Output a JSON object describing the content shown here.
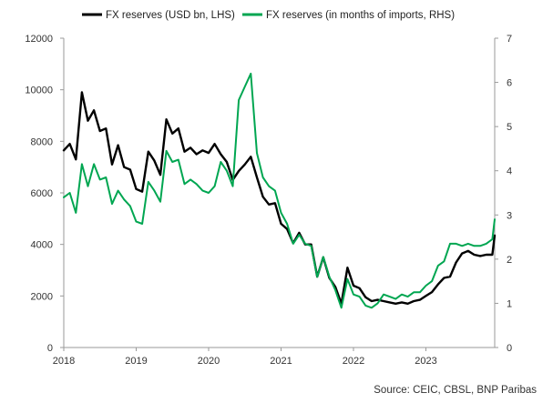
{
  "chart_data": {
    "type": "line",
    "legend": [
      "FX reserves (USD bn, LHS)",
      "FX reserves (in months of imports, RHS)"
    ],
    "left_axis": {
      "ylim": [
        0,
        12000
      ],
      "ticks": [
        "0",
        "2000",
        "4000",
        "6000",
        "8000",
        "10000",
        "12000"
      ]
    },
    "right_axis": {
      "ylim": [
        0,
        7
      ],
      "ticks": [
        "0",
        "1",
        "2",
        "3",
        "4",
        "5",
        "6",
        "7"
      ]
    },
    "x_axis": {
      "xlim": [
        2018.0,
        2023.95
      ],
      "ticks": [
        "2018",
        "2019",
        "2020",
        "2021",
        "2022",
        "2023"
      ]
    },
    "series": [
      {
        "name": "FX reserves (USD bn, LHS)",
        "axis": "left",
        "color": "#000000",
        "points": [
          [
            2018.0,
            7650
          ],
          [
            2018.083,
            7900
          ],
          [
            2018.167,
            7300
          ],
          [
            2018.25,
            9900
          ],
          [
            2018.333,
            8800
          ],
          [
            2018.417,
            9200
          ],
          [
            2018.5,
            8400
          ],
          [
            2018.583,
            8500
          ],
          [
            2018.667,
            7100
          ],
          [
            2018.75,
            7850
          ],
          [
            2018.833,
            7000
          ],
          [
            2018.917,
            6900
          ],
          [
            2019.0,
            6150
          ],
          [
            2019.083,
            6050
          ],
          [
            2019.167,
            7600
          ],
          [
            2019.25,
            7250
          ],
          [
            2019.333,
            6700
          ],
          [
            2019.417,
            8850
          ],
          [
            2019.5,
            8300
          ],
          [
            2019.583,
            8500
          ],
          [
            2019.667,
            7600
          ],
          [
            2019.75,
            7750
          ],
          [
            2019.833,
            7500
          ],
          [
            2019.917,
            7650
          ],
          [
            2020.0,
            7550
          ],
          [
            2020.083,
            7900
          ],
          [
            2020.167,
            7500
          ],
          [
            2020.25,
            7200
          ],
          [
            2020.333,
            6500
          ],
          [
            2020.417,
            6850
          ],
          [
            2020.5,
            7100
          ],
          [
            2020.583,
            7400
          ],
          [
            2020.667,
            6600
          ],
          [
            2020.75,
            5850
          ],
          [
            2020.833,
            5550
          ],
          [
            2020.917,
            5600
          ],
          [
            2021.0,
            4800
          ],
          [
            2021.083,
            4600
          ],
          [
            2021.167,
            4050
          ],
          [
            2021.25,
            4450
          ],
          [
            2021.333,
            4000
          ],
          [
            2021.417,
            4000
          ],
          [
            2021.5,
            2750
          ],
          [
            2021.583,
            3500
          ],
          [
            2021.667,
            2700
          ],
          [
            2021.75,
            2350
          ],
          [
            2021.833,
            1700
          ],
          [
            2021.917,
            3100
          ],
          [
            2022.0,
            2400
          ],
          [
            2022.083,
            2300
          ],
          [
            2022.167,
            1950
          ],
          [
            2022.25,
            1800
          ],
          [
            2022.333,
            1850
          ],
          [
            2022.417,
            1800
          ],
          [
            2022.5,
            1750
          ],
          [
            2022.583,
            1700
          ],
          [
            2022.667,
            1750
          ],
          [
            2022.75,
            1700
          ],
          [
            2022.833,
            1800
          ],
          [
            2022.917,
            1850
          ],
          [
            2023.0,
            2000
          ],
          [
            2023.083,
            2150
          ],
          [
            2023.167,
            2450
          ],
          [
            2023.25,
            2700
          ],
          [
            2023.333,
            2750
          ],
          [
            2023.417,
            3300
          ],
          [
            2023.5,
            3650
          ],
          [
            2023.583,
            3750
          ],
          [
            2023.667,
            3600
          ],
          [
            2023.75,
            3550
          ],
          [
            2023.833,
            3600
          ],
          [
            2023.917,
            3600
          ],
          [
            2023.95,
            4350
          ]
        ]
      },
      {
        "name": "FX reserves (in months of imports, RHS)",
        "axis": "right",
        "color": "#00A651",
        "points": [
          [
            2018.0,
            3.4
          ],
          [
            2018.083,
            3.5
          ],
          [
            2018.167,
            3.05
          ],
          [
            2018.25,
            4.15
          ],
          [
            2018.333,
            3.65
          ],
          [
            2018.417,
            4.15
          ],
          [
            2018.5,
            3.8
          ],
          [
            2018.583,
            3.85
          ],
          [
            2018.667,
            3.25
          ],
          [
            2018.75,
            3.55
          ],
          [
            2018.833,
            3.35
          ],
          [
            2018.917,
            3.2
          ],
          [
            2019.0,
            2.85
          ],
          [
            2019.083,
            2.8
          ],
          [
            2019.167,
            3.75
          ],
          [
            2019.25,
            3.55
          ],
          [
            2019.333,
            3.3
          ],
          [
            2019.417,
            4.45
          ],
          [
            2019.5,
            4.2
          ],
          [
            2019.583,
            4.25
          ],
          [
            2019.667,
            3.7
          ],
          [
            2019.75,
            3.8
          ],
          [
            2019.833,
            3.7
          ],
          [
            2019.917,
            3.55
          ],
          [
            2020.0,
            3.5
          ],
          [
            2020.083,
            3.65
          ],
          [
            2020.167,
            4.2
          ],
          [
            2020.25,
            4.0
          ],
          [
            2020.333,
            3.65
          ],
          [
            2020.417,
            5.6
          ],
          [
            2020.5,
            5.9
          ],
          [
            2020.583,
            6.2
          ],
          [
            2020.667,
            4.4
          ],
          [
            2020.75,
            3.85
          ],
          [
            2020.833,
            3.65
          ],
          [
            2020.917,
            3.55
          ],
          [
            2021.0,
            3.05
          ],
          [
            2021.083,
            2.8
          ],
          [
            2021.167,
            2.35
          ],
          [
            2021.25,
            2.55
          ],
          [
            2021.333,
            2.35
          ],
          [
            2021.417,
            2.3
          ],
          [
            2021.5,
            1.6
          ],
          [
            2021.583,
            2.05
          ],
          [
            2021.667,
            1.6
          ],
          [
            2021.75,
            1.3
          ],
          [
            2021.833,
            0.9
          ],
          [
            2021.917,
            1.55
          ],
          [
            2022.0,
            1.2
          ],
          [
            2022.083,
            1.15
          ],
          [
            2022.167,
            0.95
          ],
          [
            2022.25,
            0.9
          ],
          [
            2022.333,
            1.0
          ],
          [
            2022.417,
            1.2
          ],
          [
            2022.5,
            1.15
          ],
          [
            2022.583,
            1.1
          ],
          [
            2022.667,
            1.2
          ],
          [
            2022.75,
            1.15
          ],
          [
            2022.833,
            1.25
          ],
          [
            2022.917,
            1.25
          ],
          [
            2023.0,
            1.4
          ],
          [
            2023.083,
            1.5
          ],
          [
            2023.167,
            1.85
          ],
          [
            2023.25,
            1.95
          ],
          [
            2023.333,
            2.35
          ],
          [
            2023.417,
            2.35
          ],
          [
            2023.5,
            2.3
          ],
          [
            2023.583,
            2.35
          ],
          [
            2023.667,
            2.3
          ],
          [
            2023.75,
            2.3
          ],
          [
            2023.833,
            2.35
          ],
          [
            2023.917,
            2.45
          ],
          [
            2023.95,
            2.9
          ]
        ]
      }
    ]
  },
  "source": "Source: CEIC, CBSL, BNP Paribas"
}
